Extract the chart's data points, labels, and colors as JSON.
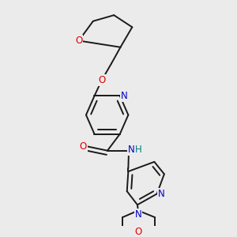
{
  "bg_color": "#ebebeb",
  "bond_color": "#1a1a1a",
  "atom_colors": {
    "O": "#e00000",
    "N": "#0000cc",
    "NH": "#008080",
    "C": "#1a1a1a"
  }
}
